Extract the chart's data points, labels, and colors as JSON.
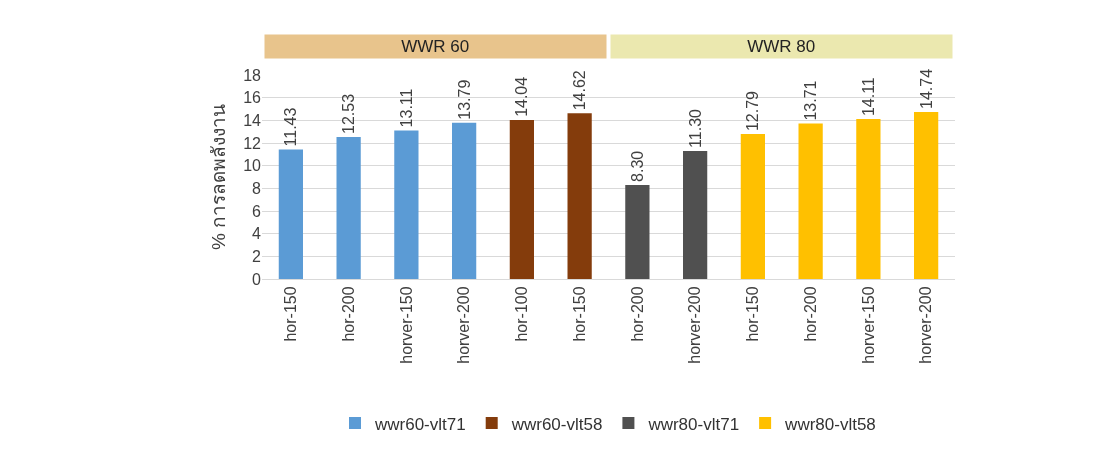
{
  "chart_data": {
    "type": "bar",
    "ylabel": "% การลดพลังงาน",
    "categories": [
      "hor-150",
      "hor-200",
      "horver-150",
      "horver-200",
      "hor-100",
      "hor-150",
      "hor-200",
      "horver-200",
      "hor-150",
      "hor-200",
      "horver-150",
      "horver-200"
    ],
    "series": [
      {
        "name": "wwr60-vlt71",
        "color": "#5b9bd5",
        "values": [
          11.43,
          12.53,
          13.11,
          13.79,
          null,
          null,
          null,
          null,
          null,
          null,
          null,
          null
        ]
      },
      {
        "name": "wwr60-vlt58",
        "color": "#843c0c",
        "values": [
          null,
          null,
          null,
          null,
          14.04,
          14.62,
          null,
          null,
          null,
          null,
          null,
          null
        ]
      },
      {
        "name": "wwr80-vlt71",
        "color": "#505050",
        "values": [
          null,
          null,
          null,
          null,
          null,
          null,
          8.3,
          11.3,
          null,
          null,
          null,
          null
        ]
      },
      {
        "name": "wwr80-vlt58",
        "color": "#ffc000",
        "values": [
          null,
          null,
          null,
          null,
          null,
          null,
          null,
          null,
          12.79,
          13.71,
          14.11,
          14.74
        ]
      }
    ],
    "value_labels": [
      [
        "11.43",
        "12.53",
        "13.11",
        "13.79",
        null,
        null,
        null,
        null,
        null,
        null,
        null,
        null
      ],
      [
        null,
        null,
        null,
        null,
        "14.04",
        "14.62",
        null,
        null,
        null,
        null,
        null,
        null
      ],
      [
        null,
        null,
        null,
        null,
        null,
        null,
        "8.30",
        "11.30",
        null,
        null,
        null,
        null
      ],
      [
        null,
        null,
        null,
        null,
        null,
        null,
        null,
        null,
        "12.79",
        "13.71",
        "14.11",
        "14.74"
      ]
    ],
    "annotations": [
      "WWR 60",
      "WWR 80"
    ],
    "ylim": [
      0,
      18
    ],
    "yticks": [
      0,
      2,
      4,
      6,
      8,
      10,
      12,
      14,
      16,
      18
    ],
    "grid": "y",
    "legend": "bottom"
  }
}
